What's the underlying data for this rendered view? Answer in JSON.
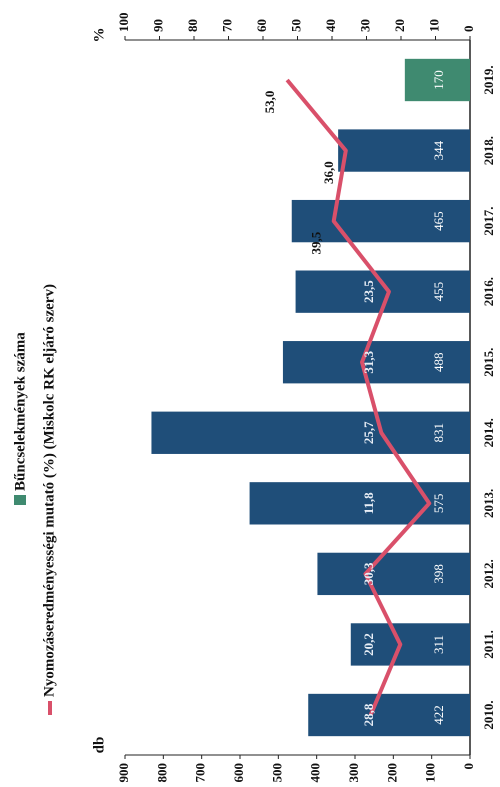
{
  "chart_data": {
    "type": "bar-line",
    "categories": [
      "2010.",
      "2011.",
      "2012.",
      "2013.",
      "2014.",
      "2015.",
      "2016.",
      "2017.",
      "2018.",
      "2019."
    ],
    "series": [
      {
        "name": "Bűncselekmények száma",
        "color": "#3f8a70",
        "type": "bar",
        "bar_colors": [
          "#1f4e79",
          "#1f4e79",
          "#1f4e79",
          "#1f4e79",
          "#1f4e79",
          "#1f4e79",
          "#1f4e79",
          "#1f4e79",
          "#1f4e79",
          "#3f8a70"
        ],
        "values": [
          422,
          311,
          398,
          575,
          831,
          488,
          455,
          465,
          344,
          170
        ]
      },
      {
        "name": "Nyomozáseredményességi mutató (%) (Miskolc RK eljáró szerv)",
        "color": "#d9506a",
        "type": "line",
        "axis": "y2",
        "values": [
          28.8,
          20.2,
          30.3,
          11.8,
          25.7,
          31.3,
          23.5,
          39.5,
          36.0,
          53.0
        ],
        "value_labels": [
          "28,8",
          "20,2",
          "30,3",
          "11,8",
          "25,7",
          "31,3",
          "23,5",
          "39,5",
          "36,0",
          "53,0"
        ]
      }
    ],
    "ylabel": "db",
    "y2label": "%",
    "ylim": [
      0,
      900
    ],
    "yticks": [
      0,
      100,
      200,
      300,
      400,
      500,
      600,
      700,
      800,
      900
    ],
    "y2lim": [
      0,
      100
    ],
    "y2ticks": [
      0,
      10,
      20,
      30,
      40,
      50,
      60,
      70,
      80,
      90,
      100
    ],
    "rotation": -90
  }
}
